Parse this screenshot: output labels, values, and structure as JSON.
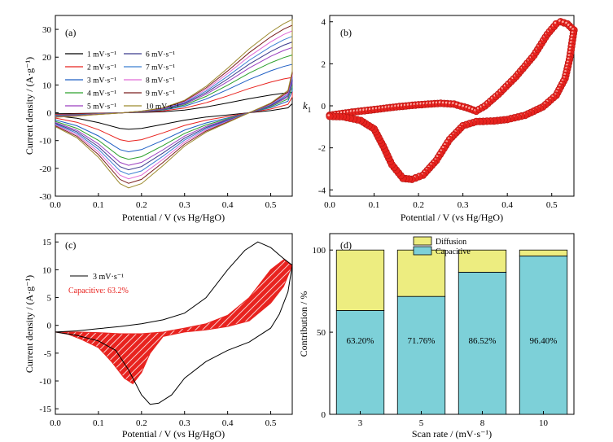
{
  "chart_data": [
    {
      "panel": "(a)",
      "type": "line",
      "xlabel": "Potential / V (vs Hg/HgO)",
      "ylabel": "Current density / (A·g⁻¹)",
      "xlim": [
        0.0,
        0.55
      ],
      "ylim": [
        -30,
        35
      ],
      "xticks": [
        0.0,
        0.1,
        0.2,
        0.3,
        0.4,
        0.5
      ],
      "xticklabels": [
        "0.0",
        "0.1",
        "0.2",
        "0.3",
        "0.4",
        "0.5"
      ],
      "yticks": [
        -30,
        -20,
        -10,
        0,
        10,
        20,
        30
      ],
      "yticklabels": [
        "-30",
        "-20",
        "-10",
        "0",
        "10",
        "20",
        "30"
      ],
      "legend_loc": "upper-left",
      "series": [
        {
          "name": "1 mV·s⁻¹",
          "color": "#000000",
          "scale": 0.22
        },
        {
          "name": "2 mV·s⁻¹",
          "color": "#e8231f",
          "scale": 0.38
        },
        {
          "name": "3 mV·s⁻¹",
          "color": "#1f5fc4",
          "scale": 0.52
        },
        {
          "name": "4 mV·s⁻¹",
          "color": "#2ca02c",
          "scale": 0.62
        },
        {
          "name": "5 mV·s⁻¹",
          "color": "#9b3fbf",
          "scale": 0.7
        },
        {
          "name": "6 mV·s⁻¹",
          "color": "#3a3a8c",
          "scale": 0.76
        },
        {
          "name": "7 mV·s⁻¹",
          "color": "#3c7fd1",
          "scale": 0.82
        },
        {
          "name": "8 mV·s⁻¹",
          "color": "#e06ad6",
          "scale": 0.88
        },
        {
          "name": "9 mV·s⁻¹",
          "color": "#7a1f1f",
          "scale": 0.94
        },
        {
          "name": "10 mV·s⁻¹",
          "color": "#9c8a2e",
          "scale": 1.0
        }
      ],
      "base_anodic": [
        [
          0.0,
          -1.6
        ],
        [
          0.05,
          -1.2
        ],
        [
          0.1,
          -0.6
        ],
        [
          0.15,
          -0.1
        ],
        [
          0.2,
          0.6
        ],
        [
          0.25,
          1.8
        ],
        [
          0.3,
          4.5
        ],
        [
          0.35,
          9.5
        ],
        [
          0.4,
          16
        ],
        [
          0.45,
          23
        ],
        [
          0.5,
          29
        ],
        [
          0.53,
          32
        ],
        [
          0.55,
          33.5
        ]
      ],
      "base_cathodic": [
        [
          0.55,
          33.5
        ],
        [
          0.55,
          15
        ],
        [
          0.54,
          8
        ],
        [
          0.5,
          3.5
        ],
        [
          0.45,
          0
        ],
        [
          0.4,
          -3.5
        ],
        [
          0.35,
          -7
        ],
        [
          0.3,
          -12
        ],
        [
          0.25,
          -19
        ],
        [
          0.2,
          -25.5
        ],
        [
          0.17,
          -27
        ],
        [
          0.15,
          -25.5
        ],
        [
          0.1,
          -16
        ],
        [
          0.05,
          -9
        ],
        [
          0.0,
          -5
        ]
      ]
    },
    {
      "panel": "(b)",
      "type": "scatter",
      "xlabel": "Potential / V (vs Hg/HgO)",
      "ylabel": "k",
      "ylabel_sub": "1",
      "xlim": [
        0.0,
        0.55
      ],
      "ylim": [
        -4.3,
        4.3
      ],
      "xticks": [
        0.0,
        0.1,
        0.2,
        0.3,
        0.4,
        0.5
      ],
      "xticklabels": [
        "0.0",
        "0.1",
        "0.2",
        "0.3",
        "0.4",
        "0.5"
      ],
      "yticks": [
        -4,
        -2,
        0,
        2,
        4
      ],
      "yticklabels": [
        "-4",
        "-2",
        "0",
        "2",
        "4"
      ],
      "marker_color": "#e8231f",
      "upper": [
        [
          0.0,
          -0.45
        ],
        [
          0.05,
          -0.3
        ],
        [
          0.1,
          -0.18
        ],
        [
          0.15,
          -0.05
        ],
        [
          0.2,
          0.05
        ],
        [
          0.25,
          0.12
        ],
        [
          0.28,
          0.08
        ],
        [
          0.31,
          -0.1
        ],
        [
          0.33,
          -0.25
        ],
        [
          0.35,
          0.0
        ],
        [
          0.38,
          0.55
        ],
        [
          0.42,
          1.4
        ],
        [
          0.46,
          2.4
        ],
        [
          0.49,
          3.4
        ],
        [
          0.51,
          3.9
        ],
        [
          0.52,
          4.0
        ],
        [
          0.535,
          3.9
        ],
        [
          0.55,
          3.6
        ]
      ],
      "lower": [
        [
          0.55,
          3.6
        ],
        [
          0.54,
          2.2
        ],
        [
          0.53,
          1.3
        ],
        [
          0.51,
          0.5
        ],
        [
          0.48,
          -0.05
        ],
        [
          0.44,
          -0.45
        ],
        [
          0.4,
          -0.65
        ],
        [
          0.37,
          -0.72
        ],
        [
          0.33,
          -0.75
        ],
        [
          0.3,
          -0.95
        ],
        [
          0.27,
          -1.6
        ],
        [
          0.24,
          -2.6
        ],
        [
          0.21,
          -3.3
        ],
        [
          0.185,
          -3.5
        ],
        [
          0.165,
          -3.45
        ],
        [
          0.14,
          -2.8
        ],
        [
          0.12,
          -1.9
        ],
        [
          0.1,
          -1.1
        ],
        [
          0.07,
          -0.7
        ],
        [
          0.03,
          -0.52
        ],
        [
          0.0,
          -0.5
        ]
      ]
    },
    {
      "panel": "(c)",
      "type": "line",
      "xlabel": "Potential / V (vs Hg/HgO)",
      "ylabel": "Current density / (A·g⁻¹)",
      "xlim": [
        0.0,
        0.55
      ],
      "ylim": [
        -16,
        16.5
      ],
      "xticks": [
        0.0,
        0.1,
        0.2,
        0.3,
        0.4,
        0.5
      ],
      "xticklabels": [
        "0.0",
        "0.1",
        "0.2",
        "0.3",
        "0.4",
        "0.5"
      ],
      "yticks": [
        -15,
        -10,
        -5,
        0,
        5,
        10,
        15
      ],
      "yticklabels": [
        "-15",
        "-10",
        "-5",
        "0",
        "5",
        "10",
        "15"
      ],
      "legend": "3 mV·s⁻¹",
      "annotation": "Capacitive: 63.2%",
      "annotation_color": "#e8231f",
      "fill_color": "#e8231f",
      "cv_anodic": [
        [
          0.0,
          -1.2
        ],
        [
          0.05,
          -1.0
        ],
        [
          0.1,
          -0.6
        ],
        [
          0.15,
          -0.2
        ],
        [
          0.2,
          0.3
        ],
        [
          0.25,
          1.0
        ],
        [
          0.3,
          2.2
        ],
        [
          0.35,
          5
        ],
        [
          0.4,
          10
        ],
        [
          0.44,
          13.5
        ],
        [
          0.47,
          15
        ],
        [
          0.5,
          14
        ],
        [
          0.53,
          12
        ],
        [
          0.55,
          10.8
        ]
      ],
      "cv_cathodic": [
        [
          0.55,
          10.8
        ],
        [
          0.54,
          6
        ],
        [
          0.52,
          2
        ],
        [
          0.5,
          -0.5
        ],
        [
          0.45,
          -3
        ],
        [
          0.4,
          -4.5
        ],
        [
          0.35,
          -6.5
        ],
        [
          0.3,
          -9.5
        ],
        [
          0.27,
          -12.5
        ],
        [
          0.24,
          -14
        ],
        [
          0.22,
          -14.2
        ],
        [
          0.2,
          -12.5
        ],
        [
          0.17,
          -8
        ],
        [
          0.14,
          -4.5
        ],
        [
          0.1,
          -2.8
        ],
        [
          0.05,
          -1.8
        ],
        [
          0.0,
          -1.2
        ]
      ],
      "cap_anodic": [
        [
          0.0,
          -1.2
        ],
        [
          0.05,
          -1.2
        ],
        [
          0.1,
          -1.3
        ],
        [
          0.15,
          -1.5
        ],
        [
          0.2,
          -1.5
        ],
        [
          0.25,
          -1.2
        ],
        [
          0.3,
          -0.5
        ],
        [
          0.35,
          0.3
        ],
        [
          0.4,
          1.8
        ],
        [
          0.45,
          5
        ],
        [
          0.5,
          10
        ],
        [
          0.53,
          11.8
        ],
        [
          0.55,
          10.8
        ]
      ],
      "cap_cathodic": [
        [
          0.55,
          10.8
        ],
        [
          0.53,
          7
        ],
        [
          0.5,
          4
        ],
        [
          0.45,
          0.8
        ],
        [
          0.4,
          -0.2
        ],
        [
          0.35,
          -0.8
        ],
        [
          0.3,
          -1.2
        ],
        [
          0.25,
          -2
        ],
        [
          0.22,
          -5
        ],
        [
          0.2,
          -8.5
        ],
        [
          0.18,
          -10.5
        ],
        [
          0.16,
          -9.5
        ],
        [
          0.13,
          -6.5
        ],
        [
          0.1,
          -4
        ],
        [
          0.06,
          -2.5
        ],
        [
          0.03,
          -1.6
        ],
        [
          0.0,
          -1.2
        ]
      ]
    },
    {
      "panel": "(d)",
      "type": "bar",
      "xlabel": "Scan rate / (mV·s⁻¹)",
      "ylabel": "Contribution / %",
      "categories": [
        "3",
        "5",
        "8",
        "10"
      ],
      "ylim": [
        0,
        110
      ],
      "yticks": [
        0,
        50,
        100
      ],
      "yticklabels": [
        "0",
        "50",
        "100"
      ],
      "series": [
        {
          "name": "Capacitive",
          "color": "#7dd0d8",
          "values": [
            63.2,
            71.76,
            86.52,
            96.4
          ]
        },
        {
          "name": "Diffusion",
          "color": "#eded80",
          "values": [
            36.8,
            28.24,
            13.48,
            3.6
          ]
        }
      ],
      "data_labels": [
        "63.20%",
        "71.76%",
        "86.52%",
        "96.40%"
      ],
      "legend_loc": "top"
    }
  ]
}
